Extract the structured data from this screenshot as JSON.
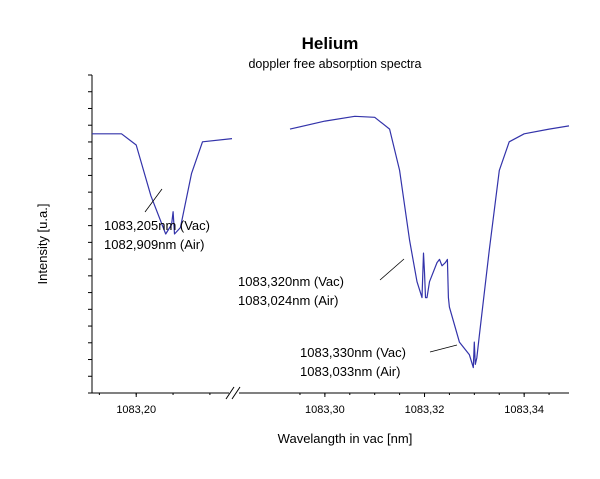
{
  "chart_data": {
    "type": "line",
    "title": "Helium",
    "subtitle": "doppler free absorption spectra",
    "xlabel": "Wavelangth in vac [nm]",
    "ylabel": "Intensity [u.a.]",
    "grid": false,
    "legend": "none",
    "line_color": "#3333aa",
    "x_axis_break": true,
    "segments": [
      {
        "xlim": [
          1083.194,
          1083.213
        ],
        "ticks": [
          "1083,20"
        ],
        "tick_values": [
          1083.2
        ]
      },
      {
        "xlim": [
          1083.293,
          1083.349
        ],
        "ticks": [
          "1083,30",
          "1083,32",
          "1083,34"
        ],
        "tick_values": [
          1083.3,
          1083.32,
          1083.34
        ]
      }
    ],
    "series": [
      {
        "values_note": "",
        "x": [
          1083.194,
          1083.198,
          1083.2,
          1083.202,
          1083.204,
          1083.2048,
          1083.205,
          1083.2052,
          1083.206,
          1083.2075,
          1083.209,
          1083.213,
          1083.293,
          1083.3,
          1083.306,
          1083.31,
          1083.313,
          1083.315,
          1083.317,
          1083.3185,
          1083.3195,
          1083.3198,
          1083.32,
          1083.3202,
          1083.3205,
          1083.321,
          1083.3225,
          1083.323,
          1083.3235,
          1083.3242,
          1083.3246,
          1083.3248,
          1083.325,
          1083.327,
          1083.329,
          1083.3298,
          1083.33,
          1083.3302,
          1083.3305,
          1083.331,
          1083.333,
          1083.335,
          1083.337,
          1083.34,
          1083.345,
          1083.349
        ],
        "y": [
          0.815,
          0.815,
          0.78,
          0.62,
          0.5,
          0.53,
          0.57,
          0.5,
          0.52,
          0.69,
          0.79,
          0.8,
          0.83,
          0.855,
          0.87,
          0.867,
          0.83,
          0.7,
          0.48,
          0.35,
          0.3,
          0.44,
          0.38,
          0.3,
          0.3,
          0.35,
          0.41,
          0.42,
          0.4,
          0.41,
          0.42,
          0.3,
          0.27,
          0.16,
          0.12,
          0.08,
          0.16,
          0.09,
          0.11,
          0.18,
          0.45,
          0.7,
          0.79,
          0.815,
          0.83,
          0.84
        ],
        "ylim": [
          0,
          1
        ]
      }
    ],
    "annotations": [
      {
        "lines": [
          "1083,205nm (Vac)",
          "1082,909nm (Air)"
        ],
        "x": 1083.205,
        "y": 0.5
      },
      {
        "lines": [
          "1083,320nm (Vac)",
          "1083,024nm (Air)"
        ],
        "x": 1083.32,
        "y": 0.3
      },
      {
        "lines": [
          "1083,330nm (Vac)",
          "1083,033nm (Air)"
        ],
        "x": 1083.33,
        "y": 0.12
      }
    ]
  }
}
